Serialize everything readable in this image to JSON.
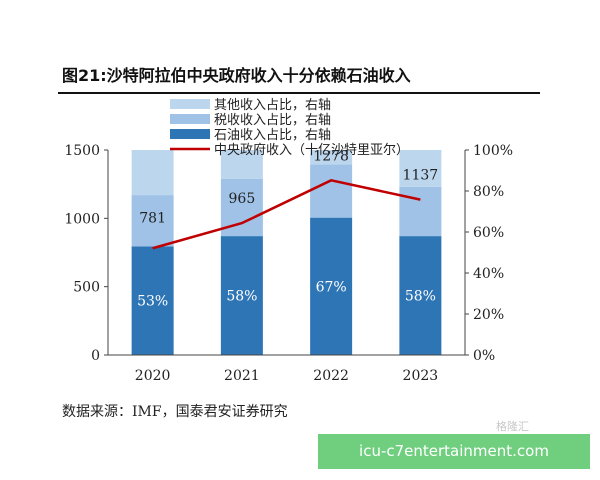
{
  "chart_data": {
    "type": "bar",
    "title": "图21:沙特阿拉伯中央政府收入十分依赖石油收入",
    "categories": [
      "2020",
      "2021",
      "2022",
      "2023"
    ],
    "series": [
      {
        "name": "其他收入占比，右轴",
        "type": "stacked-bar",
        "axis": "right",
        "values": [
          22,
          14,
          7,
          18
        ],
        "color": "#bcd6ee"
      },
      {
        "name": "税收收入占比，右轴",
        "type": "stacked-bar",
        "axis": "right",
        "values": [
          25,
          28,
          26,
          24
        ],
        "color": "#9fc2e6"
      },
      {
        "name": "石油收入占比，右轴",
        "type": "stacked-bar",
        "axis": "right",
        "values": [
          53,
          58,
          67,
          58
        ],
        "color": "#2e75b6"
      },
      {
        "name": "中央政府收入（十亿沙特里亚尔）",
        "type": "line",
        "axis": "left",
        "values": [
          781,
          965,
          1278,
          1137
        ],
        "color": "#c00000"
      }
    ],
    "bar_labels": [
      "53%",
      "58%",
      "67%",
      "58%"
    ],
    "line_labels": [
      "781",
      "965",
      "1278",
      "1137"
    ],
    "left_axis": {
      "ylim": [
        0,
        1500
      ],
      "ticks": [
        "0",
        "500",
        "1000",
        "1500"
      ]
    },
    "right_axis": {
      "ylim": [
        0,
        100
      ],
      "ticks": [
        "0%",
        "20%",
        "40%",
        "60%",
        "80%",
        "100%"
      ]
    },
    "legend_placement": "top-center",
    "grid": false,
    "source": "数据来源：IMF，国泰君安证券研究"
  },
  "watermark": "格隆汇",
  "banner": "icu-c7entertainment.com"
}
